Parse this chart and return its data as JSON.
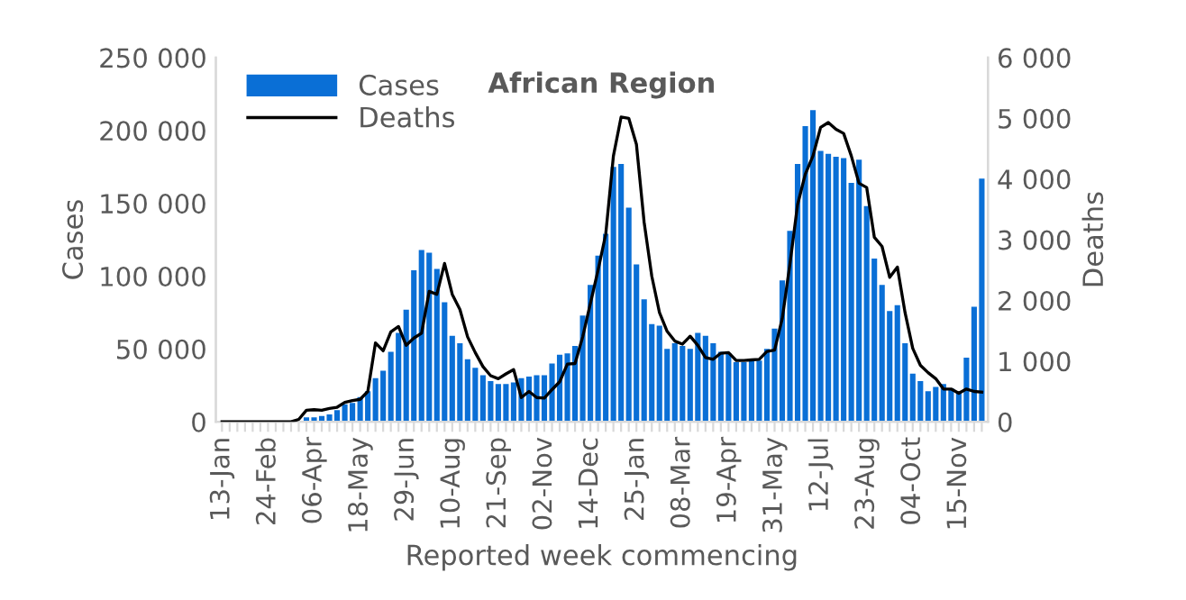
{
  "chart_data": {
    "type": "bar",
    "title": "African Region",
    "xlabel": "Reported week commencing",
    "ylabel": "Cases",
    "y2label": "Deaths",
    "categories": [
      "13-Jan",
      null,
      null,
      null,
      null,
      null,
      "24-Feb",
      null,
      null,
      null,
      null,
      null,
      "06-Apr",
      null,
      null,
      null,
      null,
      null,
      "18-May",
      null,
      null,
      null,
      null,
      null,
      "29-Jun",
      null,
      null,
      null,
      null,
      null,
      "10-Aug",
      null,
      null,
      null,
      null,
      null,
      "21-Sep",
      null,
      null,
      null,
      null,
      null,
      "02-Nov",
      null,
      null,
      null,
      null,
      null,
      "14-Dec",
      null,
      null,
      null,
      null,
      null,
      "25-Jan",
      null,
      null,
      null,
      null,
      null,
      "08-Mar",
      null,
      null,
      null,
      null,
      null,
      "19-Apr",
      null,
      null,
      null,
      null,
      null,
      "31-May",
      null,
      null,
      null,
      null,
      null,
      "12-Jul",
      null,
      null,
      null,
      null,
      null,
      "23-Aug",
      null,
      null,
      null,
      null,
      null,
      "04-Oct",
      null,
      null,
      null,
      null,
      null,
      "15-Nov",
      null,
      null,
      null
    ],
    "series": [
      {
        "name": "Cases",
        "color": "#0a6fd6",
        "values": [
          0,
          0,
          0,
          0,
          0,
          0,
          0,
          0,
          0,
          null,
          null,
          3000,
          3000,
          4000,
          5000,
          8000,
          12000,
          13000,
          17000,
          21000,
          30000,
          35000,
          48000,
          61000,
          77000,
          104000,
          118000,
          116000,
          105000,
          82000,
          59000,
          54000,
          43000,
          37000,
          32000,
          28000,
          26000,
          26000,
          27000,
          30000,
          31000,
          32000,
          32000,
          40000,
          46000,
          47000,
          52000,
          73000,
          94000,
          114000,
          129000,
          175000,
          177000,
          147000,
          108000,
          84000,
          67000,
          66000,
          50000,
          54000,
          52000,
          50000,
          61000,
          59000,
          54000,
          48000,
          47000,
          41000,
          41000,
          42000,
          42000,
          50000,
          64000,
          97000,
          131000,
          177000,
          203000,
          214000,
          186000,
          184000,
          182000,
          181000,
          164000,
          180000,
          148000,
          112000,
          94000,
          76000,
          80000,
          54000,
          33000,
          28000,
          21000,
          24000,
          26000,
          23000,
          20000,
          44000,
          79000,
          167000
        ]
      },
      {
        "name": "Deaths",
        "type": "line",
        "axis": "y2",
        "color": "#000000",
        "values": [
          0,
          0,
          0,
          0,
          0,
          0,
          0,
          0,
          0,
          0,
          40,
          190,
          200,
          190,
          220,
          240,
          320,
          350,
          370,
          500,
          1300,
          1170,
          1480,
          1570,
          1260,
          1380,
          1460,
          2150,
          2100,
          2610,
          2100,
          1850,
          1400,
          1140,
          910,
          760,
          710,
          790,
          860,
          400,
          500,
          400,
          390,
          530,
          660,
          950,
          960,
          1400,
          1950,
          2500,
          3090,
          4380,
          5020,
          5000,
          4570,
          3290,
          2400,
          1800,
          1490,
          1330,
          1280,
          1410,
          1260,
          1060,
          1030,
          1130,
          1140,
          1010,
          1010,
          1020,
          1030,
          1160,
          1180,
          1700,
          2600,
          3580,
          4080,
          4380,
          4850,
          4930,
          4820,
          4750,
          4380,
          3930,
          3860,
          3040,
          2890,
          2380,
          2550,
          1800,
          1210,
          930,
          810,
          710,
          540,
          540,
          470,
          540,
          500,
          490
        ]
      }
    ],
    "ylim": [
      0,
      250000
    ],
    "yticks": [
      {
        "value": 0,
        "label": "0"
      },
      {
        "value": 50000,
        "label": "50 000"
      },
      {
        "value": 100000,
        "label": "100 000"
      },
      {
        "value": 150000,
        "label": "150 000"
      },
      {
        "value": 200000,
        "label": "200 000"
      },
      {
        "value": 250000,
        "label": "250 000"
      }
    ],
    "y2lim": [
      0,
      6000
    ],
    "y2ticks": [
      {
        "value": 0,
        "label": "0"
      },
      {
        "value": 1000,
        "label": "1 000"
      },
      {
        "value": 2000,
        "label": "2 000"
      },
      {
        "value": 3000,
        "label": "3 000"
      },
      {
        "value": 4000,
        "label": "4 000"
      },
      {
        "value": 5000,
        "label": "5 000"
      },
      {
        "value": 6000,
        "label": "6 000"
      }
    ],
    "grid": false,
    "legend": "top left"
  }
}
